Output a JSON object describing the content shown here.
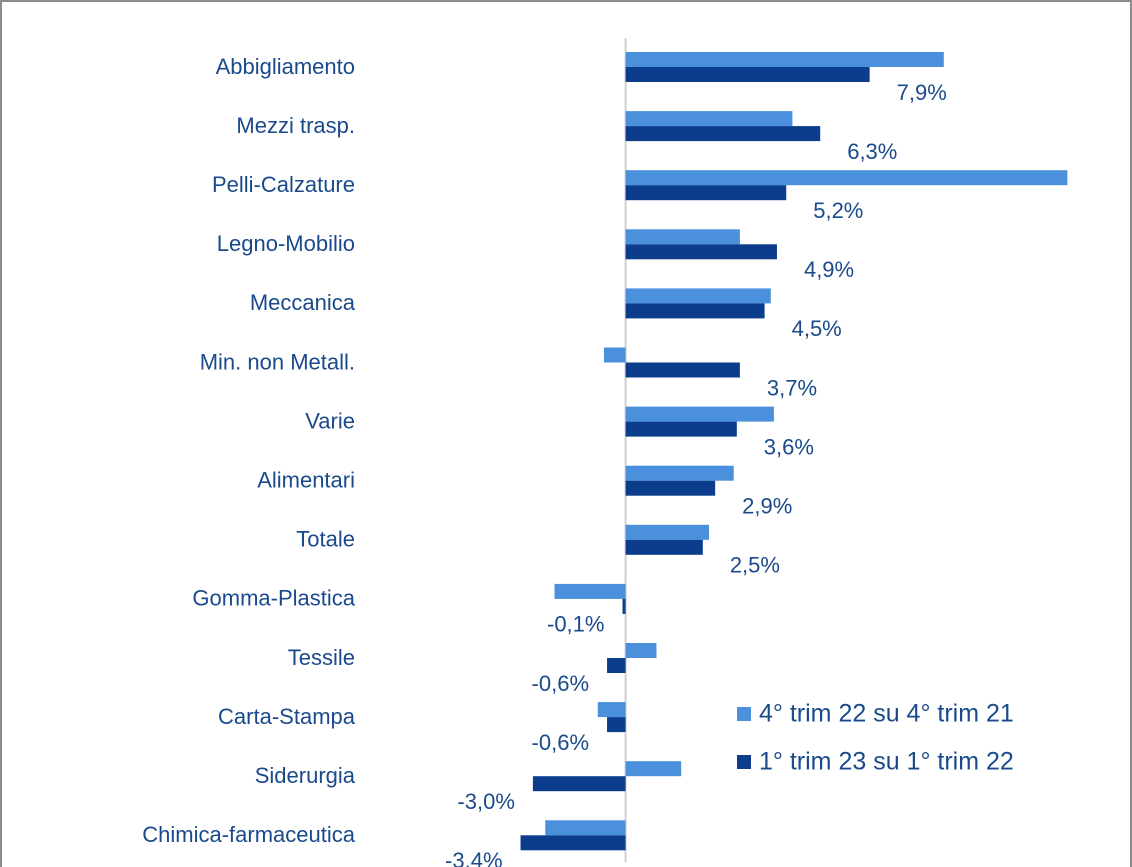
{
  "chart_data": {
    "type": "barh",
    "categories": [
      "Abbigliamento",
      "Mezzi trasp.",
      "Pelli-Calzature",
      "Legno-Mobilio",
      "Meccanica",
      "Min. non Metall.",
      "Varie",
      "Alimentari",
      "Totale",
      "Gomma-Plastica",
      "Tessile",
      "Carta-Stampa",
      "Siderurgia",
      "Chimica-farmaceutica"
    ],
    "series": [
      {
        "name": "4° trim 22 su 4° trim 21",
        "color": "#4a90dc",
        "values": [
          10.3,
          5.4,
          14.3,
          3.7,
          4.7,
          -0.7,
          4.8,
          3.5,
          2.7,
          -2.3,
          1.0,
          -0.9,
          1.8,
          -2.6
        ]
      },
      {
        "name": "1° trim 23 su 1° trim 22",
        "color": "#0b3d8c",
        "values": [
          7.9,
          6.3,
          5.2,
          4.9,
          4.5,
          3.7,
          3.6,
          2.9,
          2.5,
          -0.1,
          -0.6,
          -0.6,
          -3.0,
          -3.4
        ],
        "value_labels": [
          "7,9%",
          "6,3%",
          "5,2%",
          "4,9%",
          "4,5%",
          "3,7%",
          "3,6%",
          "2,9%",
          "2,5%",
          "-0,1%",
          "-0,6%",
          "-0,6%",
          "-3,0%",
          "-3,4%"
        ]
      }
    ],
    "xlim": [
      -4,
      15
    ]
  }
}
